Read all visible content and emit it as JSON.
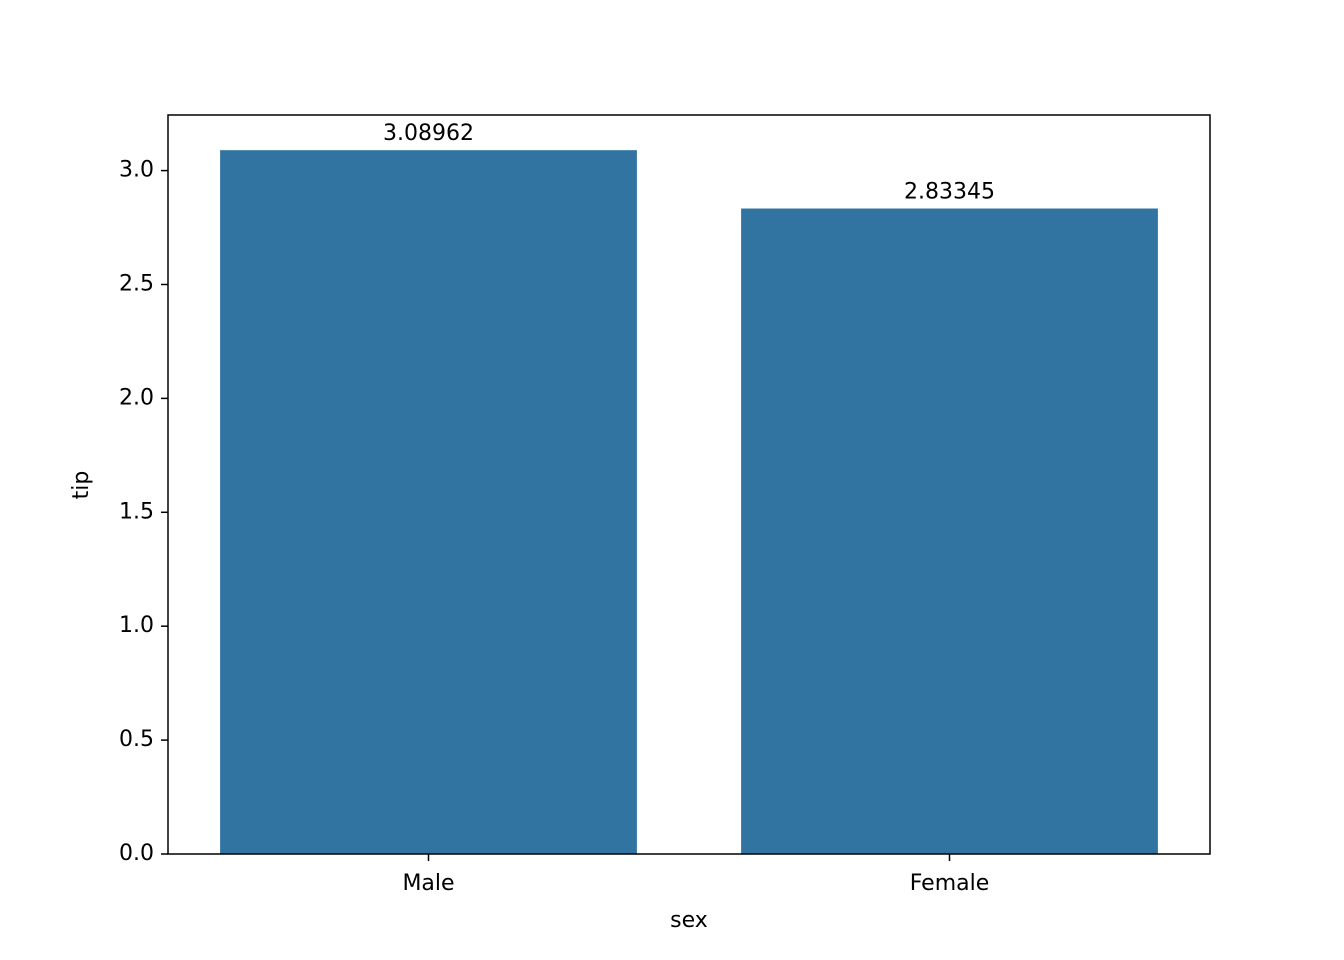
{
  "chart_data": {
    "type": "bar",
    "categories": [
      "Male",
      "Female"
    ],
    "values": [
      3.08962,
      2.83345
    ],
    "color": "#3274a1",
    "xlabel": "sex",
    "ylabel": "tip",
    "ylim": [
      0,
      3.244
    ],
    "yticks": [
      {
        "value": 0,
        "label": "0.0"
      },
      {
        "value": 0.5,
        "label": "0.5"
      },
      {
        "value": 1,
        "label": "1.0"
      },
      {
        "value": 1.5,
        "label": "1.5"
      },
      {
        "value": 2,
        "label": "2.0"
      },
      {
        "value": 2.5,
        "label": "2.5"
      },
      {
        "value": 3,
        "label": "3.0"
      }
    ],
    "grid": false
  }
}
